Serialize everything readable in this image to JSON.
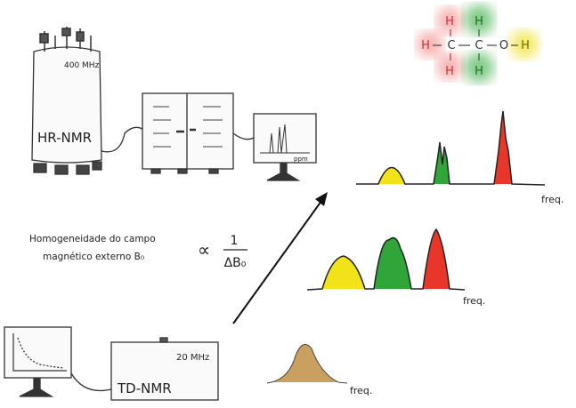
{
  "hr_nmr": {
    "label": "HR-NMR",
    "frequency": "400 MHz",
    "screen_axis": "ppm"
  },
  "td_nmr": {
    "label": "TD-NMR",
    "frequency": "20 MHz"
  },
  "formula": {
    "line1": "Homogeneidade do campo",
    "line2": "magnético externo B₀",
    "proportional": "∝",
    "numerator": "1",
    "denominator": "ΔB₀"
  },
  "molecule": {
    "atoms": [
      "H",
      "H",
      "H",
      "C",
      "C",
      "H",
      "H",
      "O",
      "H"
    ],
    "colors": {
      "ch3": "#f08080",
      "ch2": "#4caf50",
      "oh": "#f0e020"
    }
  },
  "spectra": {
    "freq_label": "freq.",
    "colors": {
      "yellow": "#f2e21a",
      "green": "#2fa53a",
      "red": "#e8362a",
      "broad": "#c9a060"
    }
  }
}
